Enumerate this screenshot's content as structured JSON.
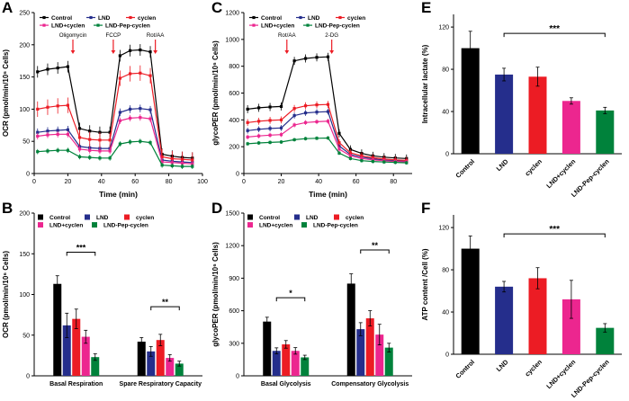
{
  "figure": {
    "background": "#ffffff"
  },
  "colors": {
    "arrow": "#ec1c24",
    "axis": "#000000",
    "error_bar": "#000000"
  },
  "series_labels": [
    "Control",
    "LND",
    "cyclen",
    "LND+cyclen",
    "LND-Pep-cyclen"
  ],
  "chart_data": [
    {
      "panel": "A",
      "type": "line",
      "xlabel": "Time (min)",
      "ylabel": "OCR (pmol/min/10⁶ Cells)",
      "xlim": [
        0,
        100
      ],
      "xticks": [
        0,
        20,
        40,
        60,
        80,
        100
      ],
      "ylim": [
        0,
        250
      ],
      "yticks": [
        0,
        50,
        100,
        150,
        200,
        250
      ],
      "x": [
        2,
        8,
        14,
        20,
        27,
        33,
        39,
        45,
        51,
        57,
        63,
        69,
        76,
        82,
        88,
        94
      ],
      "series": [
        {
          "name": "Control",
          "color": "#000000",
          "err": 9,
          "values": [
            158,
            162,
            164,
            166,
            70,
            66,
            64,
            64,
            183,
            191,
            192,
            189,
            30,
            27,
            25,
            24
          ]
        },
        {
          "name": "LND",
          "color": "#252e8c",
          "err": 6,
          "values": [
            64,
            66,
            67,
            68,
            42,
            40,
            39,
            39,
            95,
            100,
            101,
            99,
            21,
            19,
            18,
            17
          ]
        },
        {
          "name": "cyclen",
          "color": "#ec1c24",
          "err": 12,
          "values": [
            100,
            103,
            105,
            106,
            56,
            53,
            52,
            52,
            148,
            155,
            156,
            152,
            26,
            23,
            22,
            21
          ]
        },
        {
          "name": "LND+cyclen",
          "color": "#ec268f",
          "err": 5,
          "values": [
            58,
            60,
            61,
            61,
            38,
            36,
            35,
            35,
            82,
            86,
            87,
            85,
            18,
            17,
            16,
            15
          ]
        },
        {
          "name": "LND-Pep-cyclen",
          "color": "#00823b",
          "err": 4,
          "values": [
            34,
            35,
            36,
            36,
            26,
            25,
            24,
            24,
            46,
            49,
            50,
            48,
            13,
            12,
            11,
            11
          ]
        }
      ],
      "annotations": [
        {
          "label": "Oligomycin",
          "x": 23
        },
        {
          "label": "FCCP",
          "x": 47
        },
        {
          "label": "Rot/AA",
          "x": 72
        }
      ],
      "legend_rows": [
        [
          "Control",
          "LND",
          "cyclen"
        ],
        [
          "LND+cyclen",
          "LND-Pep-cyclen"
        ]
      ]
    },
    {
      "panel": "B",
      "type": "groupbar",
      "ylabel": "OCR (pmol/min/10⁶ Cells)",
      "groups": [
        "Basal Respiration",
        "Spare Respiratory Capacity"
      ],
      "ylim": [
        0,
        200
      ],
      "yticks": [
        0,
        50,
        100,
        150,
        200
      ],
      "series": [
        {
          "name": "Control",
          "color": "#000000",
          "values": [
            113,
            42
          ],
          "errors": [
            10,
            5
          ]
        },
        {
          "name": "LND",
          "color": "#252e8c",
          "values": [
            62,
            30
          ],
          "errors": [
            15,
            6
          ]
        },
        {
          "name": "cyclen",
          "color": "#ec1c24",
          "values": [
            70,
            44
          ],
          "errors": [
            12,
            7
          ]
        },
        {
          "name": "LND+cyclen",
          "color": "#ec268f",
          "values": [
            48,
            22
          ],
          "errors": [
            8,
            4
          ]
        },
        {
          "name": "LND-Pep-cyclen",
          "color": "#00823b",
          "values": [
            23,
            15
          ],
          "errors": [
            4,
            3
          ]
        }
      ],
      "significance": [
        {
          "group": 0,
          "from": 1,
          "to": 4,
          "y": 152,
          "label": "***"
        },
        {
          "group": 1,
          "from": 1,
          "to": 4,
          "y": 85,
          "label": "**"
        }
      ],
      "legend_rows": [
        [
          "Control",
          "LND",
          "cyclen"
        ],
        [
          "LND+cyclen",
          "LND-Pep-cyclen"
        ]
      ]
    },
    {
      "panel": "C",
      "type": "line",
      "xlabel": "Time (min)",
      "ylabel": "glycoPER (pmol/min/10⁶ Cells)",
      "xlim": [
        0,
        90
      ],
      "xticks": [
        0,
        20,
        40,
        60,
        80
      ],
      "ylim": [
        0,
        1200
      ],
      "yticks": [
        0,
        200,
        400,
        600,
        800,
        1000,
        1200
      ],
      "x": [
        2,
        8,
        14,
        20,
        27,
        33,
        39,
        45,
        51,
        57,
        63,
        69,
        75,
        81,
        87
      ],
      "series": [
        {
          "name": "Control",
          "color": "#000000",
          "err": 30,
          "values": [
            480,
            490,
            496,
            500,
            840,
            858,
            866,
            870,
            300,
            180,
            150,
            132,
            122,
            116,
            112
          ]
        },
        {
          "name": "LND",
          "color": "#252e8c",
          "err": 22,
          "values": [
            320,
            330,
            336,
            340,
            432,
            452,
            458,
            462,
            205,
            142,
            122,
            110,
            100,
            96,
            92
          ]
        },
        {
          "name": "cyclen",
          "color": "#ec1c24",
          "err": 26,
          "values": [
            380,
            390,
            396,
            400,
            485,
            505,
            512,
            515,
            230,
            155,
            132,
            118,
            108,
            102,
            98
          ]
        },
        {
          "name": "LND+cyclen",
          "color": "#ec268f",
          "err": 18,
          "values": [
            272,
            280,
            286,
            290,
            362,
            380,
            386,
            390,
            182,
            132,
            112,
            102,
            95,
            90,
            87
          ]
        },
        {
          "name": "LND-Pep-cyclen",
          "color": "#00823b",
          "err": 14,
          "values": [
            222,
            228,
            232,
            235,
            252,
            260,
            263,
            265,
            152,
            112,
            96,
            90,
            86,
            83,
            80
          ]
        }
      ],
      "annotations": [
        {
          "label": "Rot/AA",
          "x": 23
        },
        {
          "label": "2-DG",
          "x": 47
        }
      ],
      "legend_rows": [
        [
          "Control",
          "LND",
          "cyclen"
        ],
        [
          "LND+cyclen",
          "LND-Pep-cyclen"
        ]
      ]
    },
    {
      "panel": "D",
      "type": "groupbar",
      "ylabel": "glycoPER (pmol/min/10⁶ Cells)",
      "groups": [
        "Basal Glycolysis",
        "Compensatory Glycolysis"
      ],
      "ylim": [
        0,
        1500
      ],
      "yticks": [
        0,
        300,
        600,
        900,
        1200,
        1500
      ],
      "series": [
        {
          "name": "Control",
          "color": "#000000",
          "values": [
            500,
            850
          ],
          "errors": [
            40,
            90
          ]
        },
        {
          "name": "LND",
          "color": "#252e8c",
          "values": [
            230,
            430
          ],
          "errors": [
            28,
            60
          ]
        },
        {
          "name": "cyclen",
          "color": "#ec1c24",
          "values": [
            290,
            530
          ],
          "errors": [
            35,
            70
          ]
        },
        {
          "name": "LND+cyclen",
          "color": "#ec268f",
          "values": [
            230,
            380
          ],
          "errors": [
            30,
            95
          ]
        },
        {
          "name": "LND-Pep-cyclen",
          "color": "#00823b",
          "values": [
            170,
            260
          ],
          "errors": [
            20,
            40
          ]
        }
      ],
      "significance": [
        {
          "group": 0,
          "from": 1,
          "to": 4,
          "y": 720,
          "label": "*"
        },
        {
          "group": 1,
          "from": 1,
          "to": 4,
          "y": 1160,
          "label": "**"
        }
      ],
      "legend_rows": [
        [
          "Control",
          "LND",
          "cyclen"
        ],
        [
          "LND+cyclen",
          "LND-Pep-cyclen"
        ]
      ]
    },
    {
      "panel": "E",
      "type": "bar",
      "ylabel": "Intracellular lactate (%)",
      "categories": [
        "Control",
        "LND",
        "cyclen",
        "LND+cyclen",
        "LND-Pep-cyclen"
      ],
      "values": [
        100,
        75,
        73,
        50,
        41
      ],
      "errors": [
        16,
        6,
        9,
        3,
        3
      ],
      "bar_colors": [
        "#000000",
        "#252e8c",
        "#ec1c24",
        "#ec268f",
        "#00823b"
      ],
      "ylim": [
        0,
        132
      ],
      "yticks": [
        0,
        40,
        80,
        120
      ],
      "significance": [
        {
          "from": 1,
          "to": 4,
          "y": 114,
          "label": "***"
        }
      ]
    },
    {
      "panel": "F",
      "type": "bar",
      "ylabel": "ATP content /Cell (%)",
      "categories": [
        "Control",
        "LND",
        "cyclen",
        "LND+cyclen",
        "LND-Pep-cyclen"
      ],
      "values": [
        100,
        64,
        72,
        52,
        25
      ],
      "errors": [
        12,
        5,
        10,
        18,
        4
      ],
      "bar_colors": [
        "#000000",
        "#252e8c",
        "#ec1c24",
        "#ec268f",
        "#00823b"
      ],
      "ylim": [
        0,
        132
      ],
      "yticks": [
        0,
        40,
        80,
        120
      ],
      "significance": [
        {
          "from": 1,
          "to": 4,
          "y": 114,
          "label": "***"
        }
      ]
    }
  ]
}
